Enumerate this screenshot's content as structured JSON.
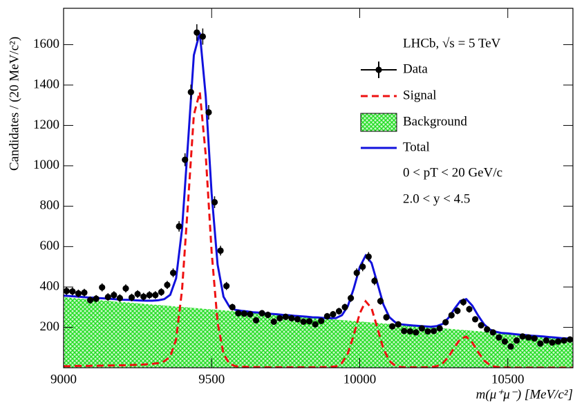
{
  "chart_data": {
    "type": "scatter",
    "x_label": "m(μ⁺μ⁻) [MeV/c²]",
    "y_label": "Candidates / (20 MeV/c²)",
    "annotations": [
      "LHCb, √s = 5 TeV",
      "0 < pT < 20 GeV/c",
      "2.0 < y < 4.5"
    ],
    "xlim": [
      9000,
      10720
    ],
    "ylim": [
      0,
      1780
    ],
    "xticks": [
      9000,
      9500,
      10000,
      10500
    ],
    "yticks": [
      200,
      400,
      600,
      800,
      1000,
      1200,
      1400,
      1600
    ],
    "data": {
      "name": "Data",
      "color": "#000000",
      "x": [
        9010,
        9030,
        9050,
        9070,
        9090,
        9110,
        9130,
        9150,
        9170,
        9190,
        9210,
        9230,
        9250,
        9270,
        9290,
        9310,
        9330,
        9350,
        9370,
        9390,
        9410,
        9430,
        9450,
        9470,
        9490,
        9510,
        9530,
        9550,
        9570,
        9590,
        9610,
        9630,
        9650,
        9670,
        9690,
        9710,
        9730,
        9750,
        9770,
        9790,
        9810,
        9830,
        9850,
        9870,
        9890,
        9910,
        9930,
        9950,
        9970,
        9990,
        10010,
        10030,
        10050,
        10070,
        10090,
        10110,
        10130,
        10150,
        10170,
        10190,
        10210,
        10230,
        10250,
        10270,
        10290,
        10310,
        10330,
        10350,
        10370,
        10390,
        10410,
        10430,
        10450,
        10470,
        10490,
        10510,
        10530,
        10550,
        10570,
        10590,
        10610,
        10630,
        10650,
        10670,
        10690,
        10710
      ],
      "values": [
        380,
        378,
        368,
        372,
        335,
        342,
        398,
        350,
        360,
        345,
        393,
        348,
        365,
        352,
        360,
        360,
        375,
        410,
        470,
        700,
        1030,
        1365,
        1660,
        1640,
        1265,
        820,
        580,
        405,
        300,
        270,
        268,
        265,
        235,
        270,
        262,
        228,
        245,
        252,
        245,
        240,
        228,
        230,
        215,
        232,
        255,
        265,
        280,
        300,
        345,
        470,
        500,
        550,
        430,
        330,
        250,
        205,
        215,
        182,
        180,
        175,
        195,
        180,
        182,
        195,
        225,
        260,
        282,
        325,
        290,
        240,
        210,
        190,
        175,
        150,
        130,
        105,
        135,
        155,
        150,
        145,
        120,
        135,
        125,
        130,
        135,
        140
      ],
      "errors": [
        19,
        19,
        19,
        19,
        18,
        18,
        20,
        19,
        19,
        19,
        20,
        19,
        19,
        19,
        19,
        19,
        19,
        20,
        22,
        26,
        32,
        37,
        41,
        40,
        36,
        29,
        24,
        20,
        17,
        16,
        16,
        16,
        15,
        16,
        16,
        15,
        16,
        16,
        16,
        15,
        15,
        15,
        15,
        15,
        16,
        16,
        17,
        17,
        19,
        22,
        22,
        23,
        21,
        18,
        16,
        14,
        15,
        13,
        13,
        13,
        14,
        13,
        13,
        14,
        15,
        16,
        17,
        18,
        17,
        15,
        14,
        14,
        13,
        12,
        11,
        10,
        12,
        12,
        12,
        12,
        11,
        12,
        11,
        11,
        12,
        12
      ]
    },
    "curve_x": [
      9000,
      9020,
      9040,
      9060,
      9080,
      9100,
      9120,
      9140,
      9160,
      9180,
      9200,
      9220,
      9240,
      9260,
      9280,
      9300,
      9320,
      9340,
      9360,
      9380,
      9400,
      9420,
      9440,
      9460,
      9480,
      9500,
      9520,
      9540,
      9560,
      9580,
      9600,
      9620,
      9640,
      9660,
      9680,
      9700,
      9720,
      9740,
      9760,
      9780,
      9800,
      9820,
      9840,
      9860,
      9880,
      9900,
      9920,
      9940,
      9960,
      9980,
      10000,
      10020,
      10040,
      10060,
      10080,
      10100,
      10120,
      10140,
      10160,
      10180,
      10200,
      10220,
      10240,
      10260,
      10280,
      10300,
      10320,
      10340,
      10360,
      10380,
      10400,
      10420,
      10440,
      10460,
      10480,
      10500,
      10520,
      10540,
      10560,
      10580,
      10600,
      10620,
      10640,
      10660,
      10680,
      10700,
      10720
    ],
    "series": [
      {
        "name": "Signal",
        "color": "#ee1111",
        "style": "dashed",
        "values": [
          8,
          8,
          9,
          9,
          9,
          10,
          10,
          11,
          11,
          12,
          12,
          13,
          14,
          15,
          17,
          19,
          23,
          32,
          55,
          140,
          385,
          812,
          1252,
          1365,
          1053,
          575,
          225,
          68,
          20,
          8,
          5,
          4,
          3,
          3,
          2,
          2,
          2,
          2,
          2,
          2,
          2,
          2,
          2,
          3,
          3,
          4,
          7,
          24,
          71,
          162,
          269,
          329,
          295,
          195,
          94,
          34,
          10,
          3,
          2,
          2,
          2,
          2,
          3,
          8,
          22,
          54,
          101,
          143,
          154,
          125,
          77,
          36,
          13,
          4,
          1,
          1,
          0,
          0,
          0,
          0,
          0,
          0,
          0,
          0,
          0,
          0,
          0
        ]
      },
      {
        "name": "Background",
        "color": "#22cc22",
        "style": "hatch",
        "values": [
          349,
          347,
          344,
          342,
          339,
          337,
          335,
          332,
          330,
          327,
          325,
          323,
          320,
          318,
          315,
          313,
          311,
          308,
          306,
          303,
          301,
          299,
          296,
          294,
          291,
          289,
          287,
          284,
          282,
          279,
          277,
          275,
          272,
          270,
          267,
          265,
          263,
          260,
          258,
          255,
          253,
          251,
          248,
          246,
          243,
          241,
          239,
          236,
          234,
          231,
          229,
          227,
          224,
          222,
          219,
          217,
          215,
          212,
          210,
          207,
          205,
          203,
          200,
          198,
          195,
          193,
          191,
          188,
          186,
          183,
          181,
          179,
          176,
          174,
          171,
          169,
          167,
          164,
          162,
          159,
          157,
          155,
          152,
          150,
          147,
          145,
          143
        ]
      },
      {
        "name": "Total",
        "color": "#1111dd",
        "style": "solid",
        "values": [
          357,
          355,
          353,
          351,
          348,
          347,
          345,
          343,
          341,
          339,
          337,
          336,
          334,
          333,
          332,
          332,
          334,
          340,
          361,
          443,
          686,
          1111,
          1548,
          1659,
          1344,
          864,
          512,
          352,
          302,
          287,
          282,
          279,
          275,
          273,
          269,
          267,
          265,
          262,
          260,
          257,
          255,
          253,
          250,
          249,
          246,
          245,
          246,
          260,
          305,
          393,
          498,
          556,
          519,
          417,
          313,
          251,
          225,
          215,
          212,
          209,
          207,
          205,
          203,
          206,
          217,
          247,
          292,
          331,
          340,
          308,
          258,
          215,
          189,
          178,
          172,
          170,
          167,
          164,
          162,
          159,
          157,
          155,
          152,
          150,
          147,
          145,
          143
        ]
      }
    ]
  }
}
